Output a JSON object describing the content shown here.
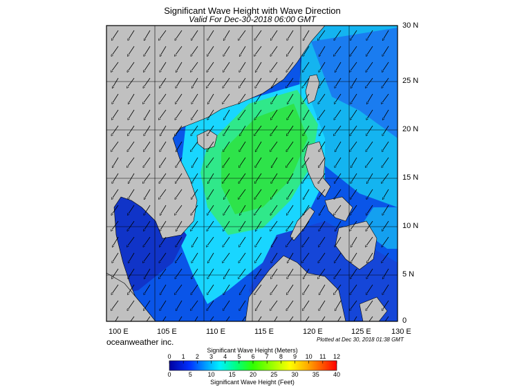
{
  "title": "Significant Wave Height with Wave Direction",
  "subtitle": "Valid For Dec-30-2018 06:00 GMT",
  "lat_labels": [
    "30 N",
    "25 N",
    "20 N",
    "15 N",
    "10 N",
    "5 N",
    "0"
  ],
  "lon_labels": [
    "100 E",
    "105 E",
    "110 E",
    "115 E",
    "120 E",
    "125 E",
    "130 E"
  ],
  "company": "oceanweather inc.",
  "plotted": "Plotted at Dec 30, 2018 01:38 GMT",
  "colorbar": {
    "meters_title": "Significant Wave Height (Meters)",
    "feet_title": "Significant Wave Height (Feet)",
    "meters_ticks": [
      "0",
      "1",
      "2",
      "3",
      "4",
      "5",
      "6",
      "7",
      "8",
      "9",
      "10",
      "11",
      "12"
    ],
    "feet_ticks": [
      "0",
      "5",
      "10",
      "15",
      "20",
      "25",
      "30",
      "35",
      "40"
    ]
  },
  "colors": {
    "land": "#c0c0c0",
    "deep_blue": "#1a3ad6",
    "cyan": "#19d6ff",
    "green": "#2ee34a"
  }
}
